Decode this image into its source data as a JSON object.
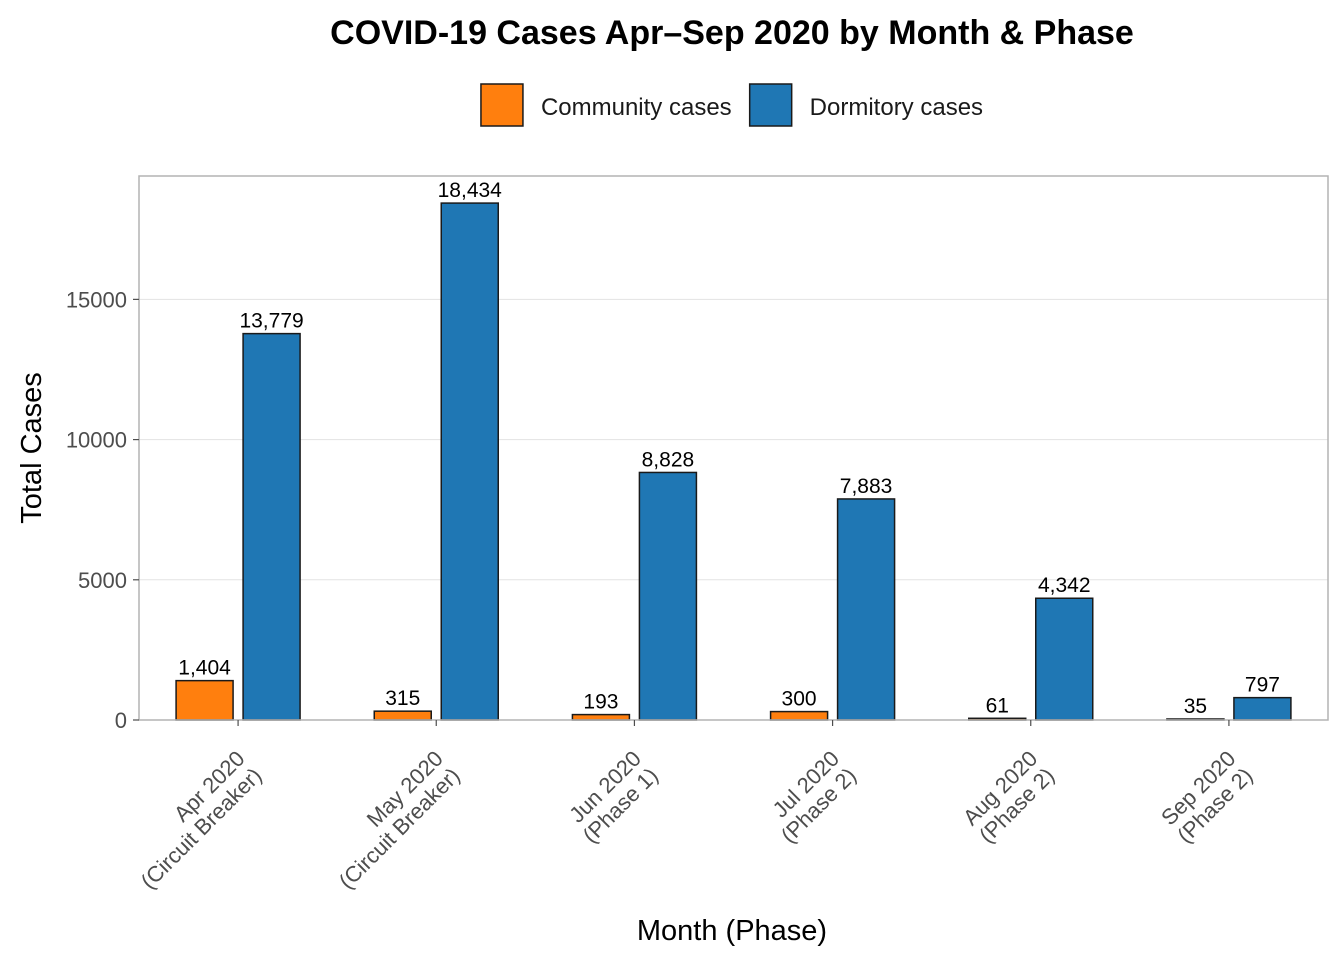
{
  "chart_data": {
    "type": "bar",
    "title": "COVID-19 Cases Apr–Sep 2020 by Month & Phase",
    "xlabel": "Month (Phase)",
    "ylabel": "Total Cases",
    "categories": [
      [
        "Apr 2020",
        "(Circuit Breaker)"
      ],
      [
        "May 2020",
        "(Circuit Breaker)"
      ],
      [
        "Jun 2020",
        "(Phase 1)"
      ],
      [
        "Jul 2020",
        "(Phase 2)"
      ],
      [
        "Aug 2020",
        "(Phase 2)"
      ],
      [
        "Sep 2020",
        "(Phase 2)"
      ]
    ],
    "series": [
      {
        "name": "Community cases",
        "color": "#ff7f0e",
        "values": [
          1404,
          315,
          193,
          300,
          61,
          35
        ],
        "labels": [
          "1,404",
          "315",
          "193",
          "300",
          "61",
          "35"
        ]
      },
      {
        "name": "Dormitory cases",
        "color": "#1f77b4",
        "values": [
          13779,
          18434,
          8828,
          7883,
          4342,
          797
        ],
        "labels": [
          "13,779",
          "18,434",
          "8,828",
          "7,883",
          "4,342",
          "797"
        ]
      }
    ],
    "yticks": [
      0,
      5000,
      10000,
      15000
    ],
    "ylim": [
      0,
      19400
    ],
    "grid": true,
    "legend_position": "top"
  }
}
